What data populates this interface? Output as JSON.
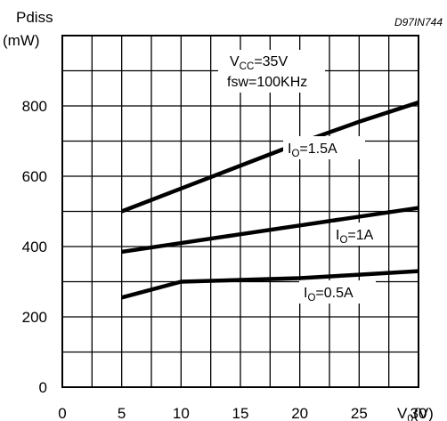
{
  "chart_data": {
    "type": "line",
    "figure_code": "D97IN744",
    "ylabel_line1": "Pdiss",
    "ylabel_line2": "(mW)",
    "xlabel": {
      "main": "V",
      "sub": "0",
      "tail": "(V)"
    },
    "xlim": [
      0,
      30
    ],
    "ylim": [
      0,
      1000
    ],
    "x_ticks": [
      0,
      5,
      10,
      15,
      20,
      25,
      30
    ],
    "y_ticks": [
      0,
      200,
      400,
      600,
      800
    ],
    "grid": true,
    "conditions": [
      {
        "main": "V",
        "sub": "CC",
        "tail": "=35V"
      },
      {
        "main": "fsw=100KHz",
        "sub": "",
        "tail": ""
      }
    ],
    "series": [
      {
        "label": {
          "main": "I",
          "sub": "O",
          "tail": "=1.5A"
        },
        "x": [
          5,
          10,
          15,
          20,
          25,
          30
        ],
        "y": [
          500,
          565,
          630,
          695,
          755,
          810
        ]
      },
      {
        "label": {
          "main": "I",
          "sub": "O",
          "tail": "=1A"
        },
        "x": [
          5,
          10,
          15,
          20,
          25,
          30
        ],
        "y": [
          385,
          410,
          435,
          460,
          485,
          510
        ]
      },
      {
        "label": {
          "main": "I",
          "sub": "O",
          "tail": "=0.5A"
        },
        "x": [
          5,
          10,
          15,
          20,
          25,
          30
        ],
        "y": [
          255,
          300,
          305,
          310,
          320,
          330
        ]
      }
    ]
  }
}
